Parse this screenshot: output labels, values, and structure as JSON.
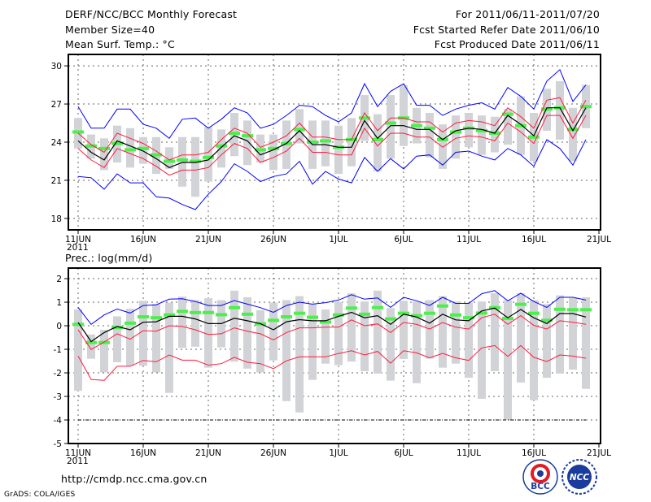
{
  "header": {
    "title": "DERF/NCC/BCC Monthly Forecast",
    "member_size": "Member Size=40",
    "variable": "Mean Surf. Temp.: °C",
    "period": "For 2011/06/11-2011/07/20",
    "started": "Fcst Started Refer Date 2011/06/10",
    "produced": "Fcst Produced Date 2011/06/11"
  },
  "footer": {
    "url": "http://cmdp.ncc.cma.gov.cn",
    "credit": "GrADS: COLA/IGES",
    "logo_bcc": "BCC",
    "logo_ncc": "NCC"
  },
  "colors": {
    "mean": "#000000",
    "spread": "#ff1a3c",
    "extreme": "#0000ff",
    "marker": "#4cf04c",
    "range": "#d2d3d7"
  },
  "chart_data": [
    {
      "type": "line",
      "title": "Mean Surf. Temp.: °C",
      "x_tick_labels": [
        "11JUN",
        "16JUN",
        "21JUN",
        "26JUN",
        "1JUL",
        "6JUL",
        "11JUL",
        "16JUL",
        "21JUL"
      ],
      "x_year_label": "2011",
      "days": 40,
      "yticks": [
        18,
        21,
        24,
        27,
        30
      ],
      "ylim": [
        17.1,
        30.9
      ],
      "grid": true,
      "series": [
        {
          "name": "range_max",
          "values": [
            25.9,
            24.6,
            24.3,
            25.3,
            25.1,
            24.4,
            24.4,
            23.6,
            24.4,
            24.4,
            25.2,
            25.0,
            26.3,
            25.7,
            24.6,
            24.6,
            25.7,
            26.6,
            25.7,
            25.7,
            25.3,
            25.9,
            27.7,
            26.2,
            27.7,
            28.5,
            26.7,
            26.3,
            25.4,
            26.1,
            26.3,
            26.1,
            26.0,
            26.6,
            27.6,
            26.3,
            28.2,
            28.8,
            26.7,
            28.5
          ]
        },
        {
          "name": "range_min",
          "values": [
            23.5,
            22.7,
            21.8,
            22.4,
            22.0,
            22.3,
            21.5,
            21.9,
            20.5,
            19.7,
            20.9,
            22.0,
            22.9,
            22.2,
            22.4,
            21.8,
            21.9,
            23.9,
            21.9,
            22.1,
            21.5,
            22.1,
            24.1,
            21.7,
            22.7,
            23.7,
            23.9,
            22.8,
            21.9,
            22.7,
            23.6,
            23.0,
            23.2,
            23.8,
            23.0,
            22.5,
            24.9,
            24.2,
            22.5,
            25.1
          ]
        },
        {
          "name": "marker",
          "values": [
            24.8,
            23.7,
            23.5,
            23.9,
            23.4,
            23.5,
            23.0,
            22.5,
            22.6,
            22.5,
            22.8,
            23.7,
            24.7,
            24.5,
            23.4,
            23.5,
            23.9,
            25.0,
            24.0,
            24.1,
            23.6,
            24.2,
            25.9,
            24.2,
            25.5,
            25.9,
            25.3,
            25.1,
            24.2,
            24.8,
            25.1,
            24.9,
            24.7,
            26.2,
            25.3,
            24.4,
            26.6,
            26.7,
            25.0,
            26.8
          ]
        },
        {
          "name": "max",
          "values": [
            26.8,
            25.1,
            25.1,
            26.6,
            26.6,
            25.4,
            25.1,
            24.3,
            25.8,
            25.9,
            25.1,
            25.8,
            26.7,
            26.3,
            25.1,
            25.4,
            26.1,
            26.9,
            26.8,
            26.1,
            25.6,
            26.3,
            28.6,
            26.8,
            28.0,
            28.6,
            26.9,
            26.9,
            26.1,
            26.6,
            26.9,
            27.1,
            26.6,
            28.3,
            27.6,
            26.6,
            28.8,
            29.7,
            27.2,
            28.5
          ]
        },
        {
          "name": "min",
          "values": [
            21.3,
            21.2,
            20.3,
            21.5,
            20.8,
            20.8,
            19.7,
            19.6,
            19.1,
            18.7,
            19.9,
            20.9,
            22.3,
            21.7,
            20.9,
            21.3,
            21.5,
            22.5,
            20.7,
            21.7,
            21.1,
            20.8,
            22.8,
            21.7,
            22.7,
            21.9,
            22.9,
            23.0,
            22.2,
            23.2,
            23.3,
            22.9,
            22.6,
            23.5,
            23.0,
            22.1,
            24.2,
            23.5,
            22.2,
            24.2
          ]
        },
        {
          "name": "upper",
          "values": [
            24.7,
            23.8,
            23.2,
            24.7,
            24.3,
            23.9,
            23.3,
            22.6,
            23.0,
            23.0,
            23.2,
            24.2,
            25.1,
            24.7,
            23.6,
            24.0,
            24.5,
            25.5,
            24.4,
            24.4,
            24.2,
            24.2,
            26.3,
            24.9,
            25.9,
            25.9,
            25.6,
            25.6,
            24.8,
            25.5,
            25.7,
            25.6,
            25.3,
            26.7,
            26.0,
            25.1,
            27.3,
            27.5,
            25.5,
            27.3
          ]
        },
        {
          "name": "lower",
          "values": [
            23.5,
            22.6,
            22.0,
            23.5,
            23.1,
            22.7,
            22.1,
            21.4,
            21.8,
            21.8,
            22.0,
            23.0,
            23.9,
            23.5,
            22.4,
            22.8,
            23.3,
            24.3,
            23.2,
            23.2,
            23.0,
            23.0,
            25.1,
            23.7,
            24.7,
            24.7,
            24.4,
            24.4,
            23.6,
            24.3,
            24.5,
            24.4,
            24.1,
            25.5,
            24.8,
            23.9,
            26.1,
            26.1,
            24.3,
            26.1
          ]
        },
        {
          "name": "mean",
          "values": [
            24.1,
            23.2,
            22.6,
            24.1,
            23.7,
            23.3,
            22.7,
            22.0,
            22.4,
            22.4,
            22.6,
            23.6,
            24.5,
            24.1,
            23.0,
            23.4,
            23.9,
            24.9,
            23.8,
            23.8,
            23.6,
            23.6,
            25.7,
            24.3,
            25.3,
            25.3,
            25.0,
            25.0,
            24.2,
            24.9,
            25.1,
            25.0,
            24.7,
            26.1,
            25.4,
            24.5,
            26.7,
            26.7,
            24.9,
            26.7
          ]
        }
      ]
    },
    {
      "type": "line",
      "title": "Prec.: log(mm/d)",
      "x_tick_labels": [
        "11JUN",
        "16JUN",
        "21JUN",
        "26JUN",
        "1JUL",
        "6JUL",
        "11JUL",
        "16JUL",
        "21JUL"
      ],
      "x_year_label": "2011",
      "days": 40,
      "yticks": [
        -5,
        -4,
        -3,
        -2,
        -1,
        0,
        1,
        2
      ],
      "ylim": [
        -5,
        2.45
      ],
      "grid": true,
      "reference_line": -4,
      "series": [
        {
          "name": "range_max",
          "values": [
            0.69,
            -0.37,
            -0.17,
            0.4,
            0.72,
            1.06,
            0.92,
            0.98,
            1.24,
            1.09,
            1.17,
            1.09,
            1.49,
            1.21,
            0.66,
            0.98,
            1.09,
            1.26,
            0.92,
            0.69,
            1.01,
            1.38,
            1.03,
            1.49,
            0.75,
            1.06,
            1.03,
            1.09,
            1.26,
            1.03,
            0.98,
            1.03,
            1.38,
            1.09,
            1.38,
            1.09,
            0.92,
            1.29,
            1.18,
            1.21
          ]
        },
        {
          "name": "range_min",
          "values": [
            -2.76,
            -1.4,
            -1.98,
            -1.55,
            -1.7,
            -1.7,
            -1.98,
            -2.85,
            -0.94,
            -0.89,
            -1.78,
            -0.92,
            -1.52,
            -1.82,
            -1.98,
            -1.47,
            -3.2,
            -3.68,
            -2.3,
            -1.61,
            -1.67,
            -1.52,
            -1.93,
            -2.03,
            -2.33,
            -1.41,
            -2.44,
            -1.4,
            -1.78,
            -1.61,
            -2.21,
            -3.1,
            -1.93,
            -3.99,
            -2.41,
            -3.16,
            -2.21,
            -2.03,
            -1.86,
            -2.68
          ]
        },
        {
          "name": "marker",
          "values": [
            0.06,
            -0.71,
            -0.71,
            -0.08,
            0.11,
            0.38,
            0.34,
            0.46,
            0.61,
            0.56,
            0.56,
            0.47,
            0.77,
            0.49,
            0.08,
            0.23,
            0.38,
            0.53,
            0.36,
            0.16,
            0.46,
            0.75,
            0.49,
            0.77,
            0.29,
            0.53,
            0.43,
            0.53,
            0.84,
            0.46,
            0.34,
            0.54,
            0.77,
            0.31,
            0.91,
            0.53,
            0.23,
            0.7,
            0.68,
            0.68
          ]
        },
        {
          "name": "max",
          "values": [
            0.78,
            0.06,
            0.46,
            0.71,
            0.54,
            0.86,
            0.89,
            1.13,
            1.15,
            1.03,
            0.86,
            0.86,
            1.07,
            0.92,
            0.77,
            0.57,
            0.86,
            1.0,
            0.92,
            0.98,
            1.09,
            1.32,
            1.13,
            1.18,
            0.78,
            1.21,
            1.06,
            0.86,
            1.21,
            0.95,
            0.95,
            1.36,
            1.49,
            1.06,
            1.38,
            1.03,
            0.78,
            1.21,
            1.21,
            1.09
          ]
        },
        {
          "name": "upper",
          "values": [
            -0.17,
            -1.01,
            -0.69,
            -0.34,
            -0.57,
            -0.21,
            -0.23,
            0,
            -0.03,
            -0.17,
            -0.37,
            -0.34,
            -0.09,
            -0.23,
            -0.34,
            -0.6,
            -0.29,
            -0.09,
            -0.09,
            -0.06,
            -0.06,
            0.25,
            0,
            0.08,
            -0.29,
            0.14,
            0.06,
            -0.14,
            0.14,
            -0.06,
            -0.14,
            0.34,
            0.49,
            0.06,
            0.43,
            0.02,
            -0.14,
            0.21,
            0.15,
            0.06
          ]
        },
        {
          "name": "lower",
          "values": [
            -1.29,
            -2.28,
            -2.32,
            -1.72,
            -1.72,
            -1.47,
            -1.53,
            -1.24,
            -1.46,
            -1.46,
            -1.67,
            -1.61,
            -1.34,
            -1.55,
            -1.61,
            -1.82,
            -1.49,
            -1.32,
            -1.32,
            -1.32,
            -1.18,
            -1.06,
            -1.24,
            -1.09,
            -1.59,
            -1.06,
            -1.15,
            -1.36,
            -1.17,
            -1.36,
            -1.47,
            -0.94,
            -0.84,
            -1.3,
            -0.84,
            -1.34,
            -1.52,
            -1.24,
            -1.29,
            -1.38
          ]
        },
        {
          "name": "mean",
          "values": [
            0.14,
            -0.67,
            -0.29,
            -0.03,
            -0.17,
            0.15,
            0.17,
            0.4,
            0.4,
            0.29,
            0.09,
            0.09,
            0.32,
            0.21,
            0.09,
            -0.17,
            0.17,
            0.26,
            0.21,
            0.21,
            0.4,
            0.57,
            0.34,
            0.43,
            0.06,
            0.49,
            0.37,
            0.11,
            0.49,
            0.25,
            0.21,
            0.63,
            0.75,
            0.34,
            0.69,
            0.34,
            0.09,
            0.52,
            0.52,
            0.37
          ]
        }
      ]
    }
  ]
}
